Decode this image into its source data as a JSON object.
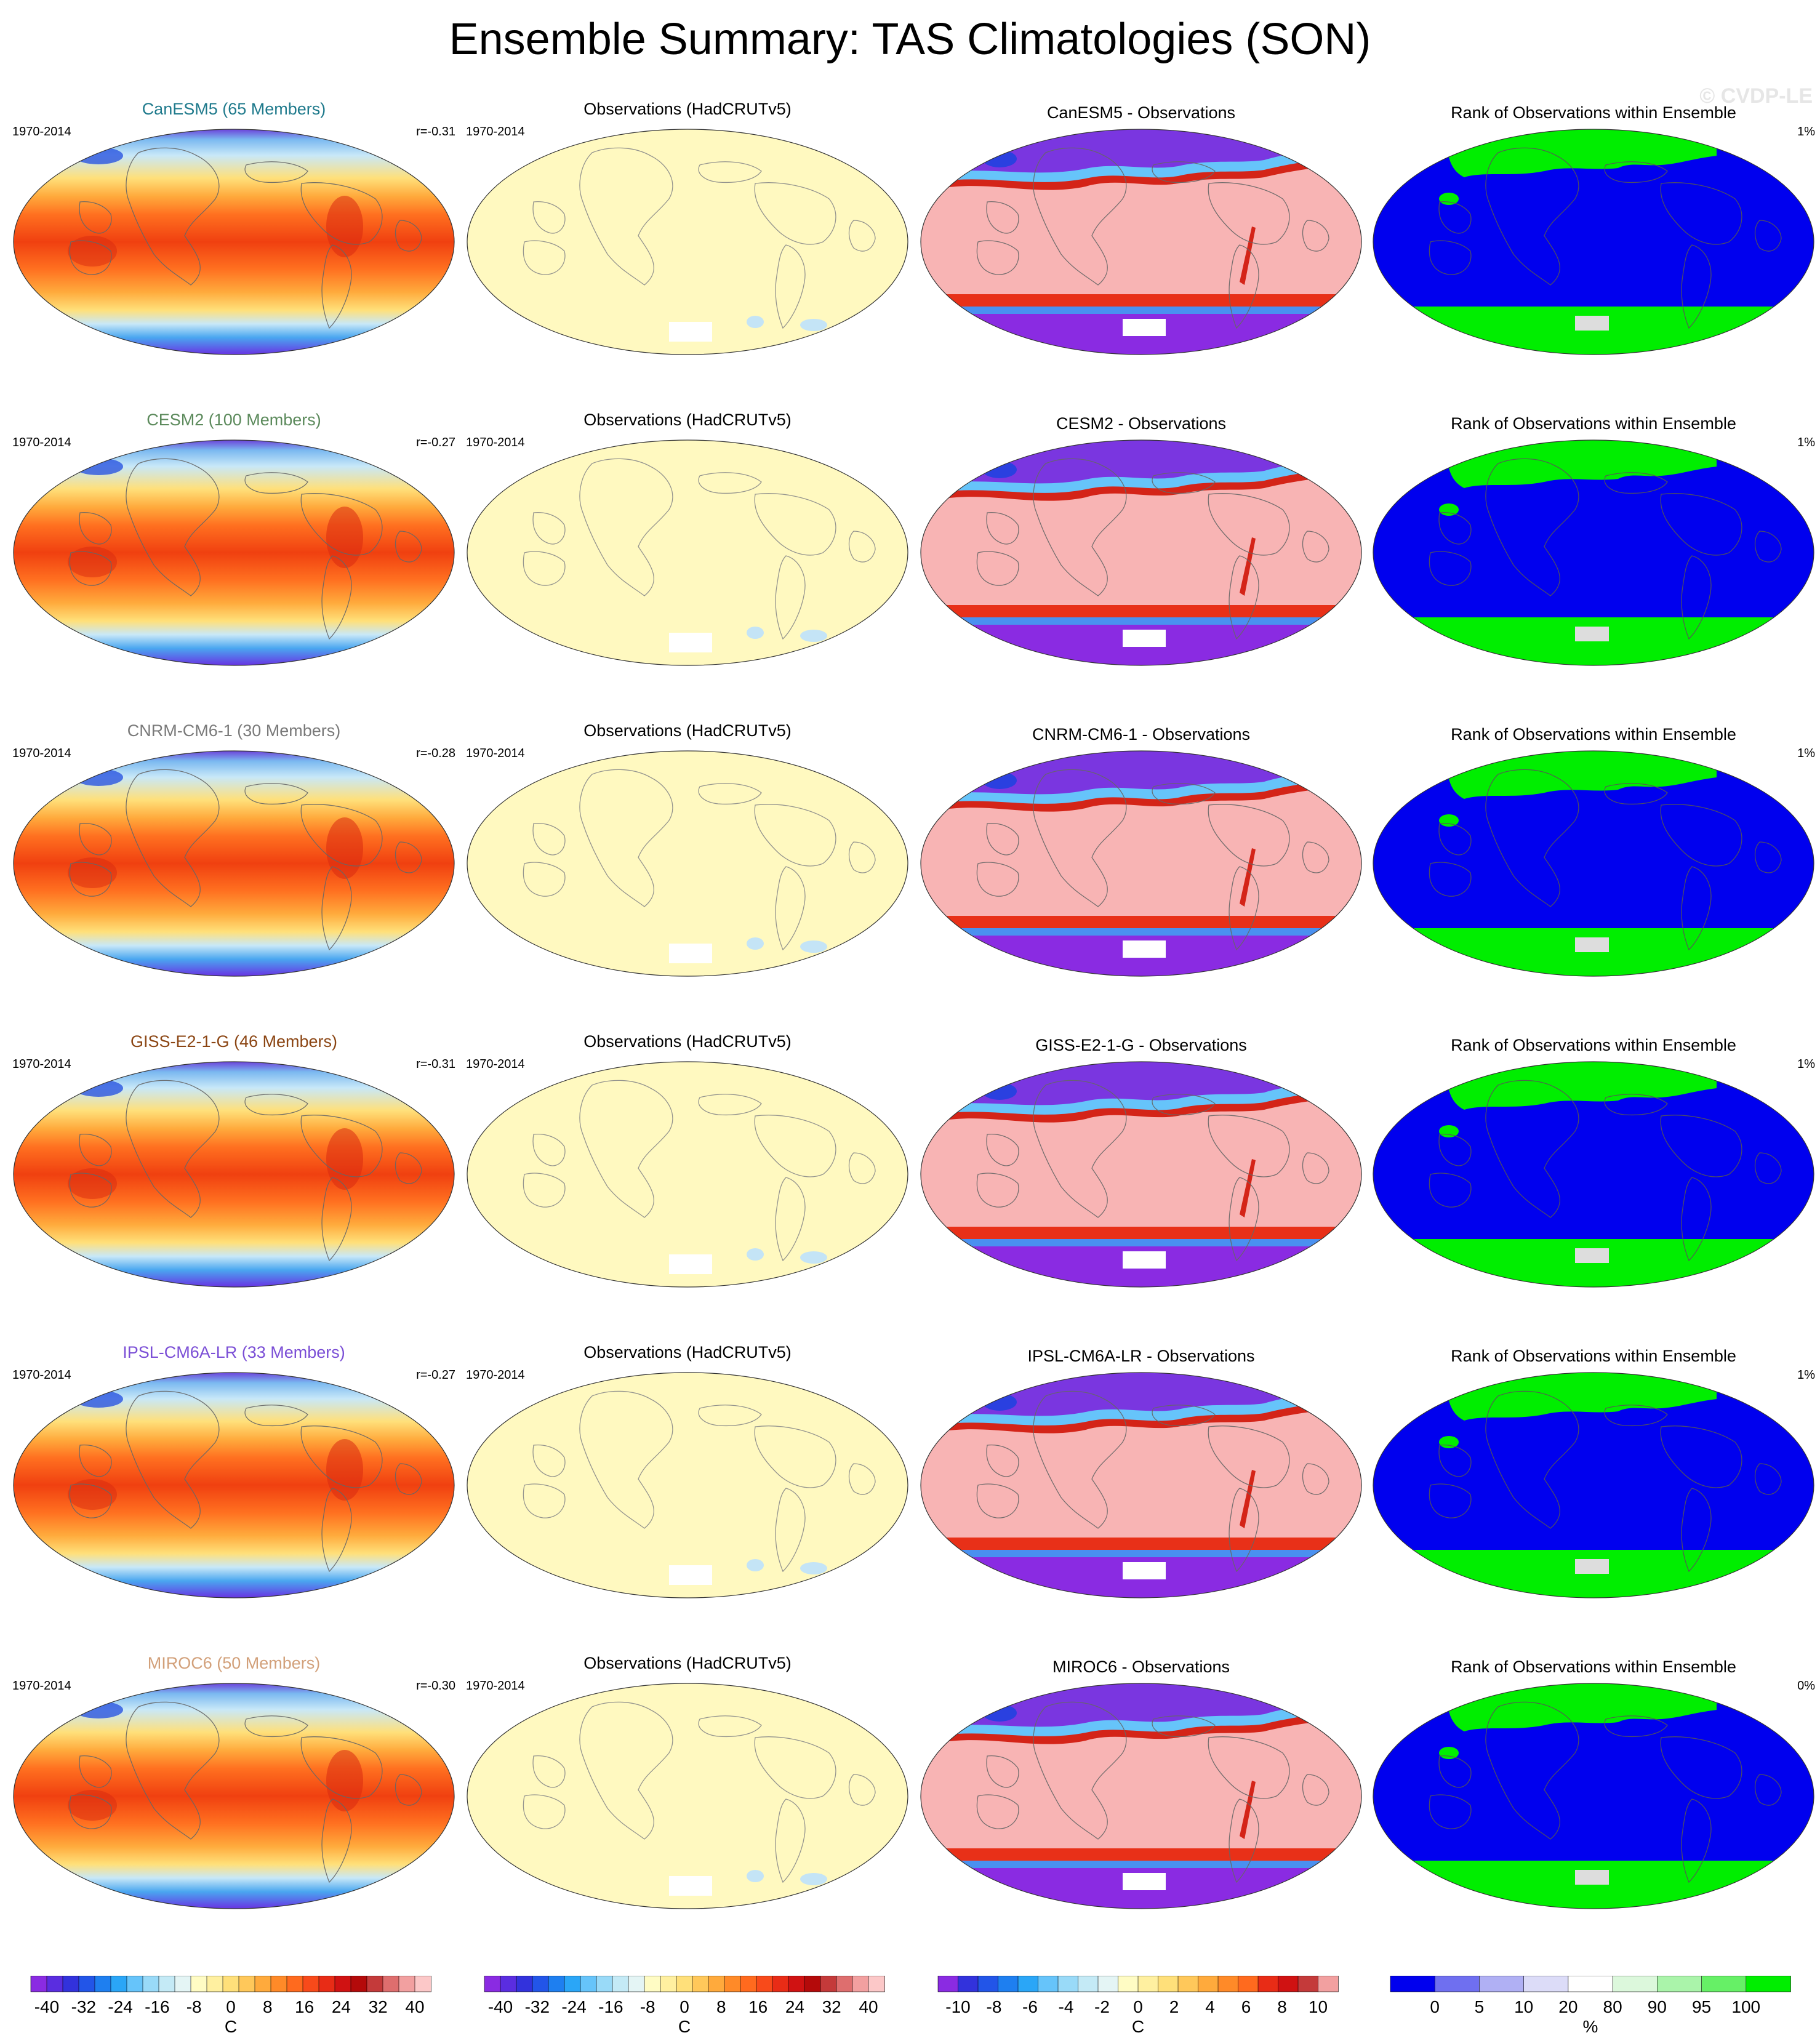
{
  "title": "Ensemble Summary: TAS Climatologies (SON)",
  "watermark": "© CVDP-LE",
  "panels": [
    {
      "model_title": "CanESM5 (65 Members)",
      "model_title_color": "#1f7a8c",
      "period": "1970-2014",
      "r": "r=-0.31",
      "obs_title": "Observations (HadCRUTv5)",
      "obs_period": "1970-2014",
      "diff_title": "CanESM5 - Observations",
      "rank_title": "Rank of Observations within Ensemble",
      "rank_pct": "1%"
    },
    {
      "model_title": "CESM2 (100 Members)",
      "model_title_color": "#5c8a5c",
      "period": "1970-2014",
      "r": "r=-0.27",
      "obs_title": "Observations (HadCRUTv5)",
      "obs_period": "1970-2014",
      "diff_title": "CESM2 - Observations",
      "rank_title": "Rank of Observations within Ensemble",
      "rank_pct": "1%"
    },
    {
      "model_title": "CNRM-CM6-1 (30 Members)",
      "model_title_color": "#7a7a7a",
      "period": "1970-2014",
      "r": "r=-0.28",
      "obs_title": "Observations (HadCRUTv5)",
      "obs_period": "1970-2014",
      "diff_title": "CNRM-CM6-1 - Observations",
      "rank_title": "Rank of Observations within Ensemble",
      "rank_pct": "1%"
    },
    {
      "model_title": "GISS-E2-1-G (46 Members)",
      "model_title_color": "#8b4513",
      "period": "1970-2014",
      "r": "r=-0.31",
      "obs_title": "Observations (HadCRUTv5)",
      "obs_period": "1970-2014",
      "diff_title": "GISS-E2-1-G - Observations",
      "rank_title": "Rank of Observations within Ensemble",
      "rank_pct": "1%"
    },
    {
      "model_title": "IPSL-CM6A-LR (33 Members)",
      "model_title_color": "#7b4fd6",
      "period": "1970-2014",
      "r": "r=-0.27",
      "obs_title": "Observations (HadCRUTv5)",
      "obs_period": "1970-2014",
      "diff_title": "IPSL-CM6A-LR - Observations",
      "rank_title": "Rank of Observations within Ensemble",
      "rank_pct": "1%"
    },
    {
      "model_title": "MIROC6 (50 Members)",
      "model_title_color": "#d2a07a",
      "period": "1970-2014",
      "r": "r=-0.30",
      "obs_title": "Observations (HadCRUTv5)",
      "obs_period": "1970-2014",
      "diff_title": "MIROC6 - Observations",
      "rank_title": "Rank of Observations within Ensemble",
      "rank_pct": "0%"
    }
  ],
  "colorbars": [
    {
      "labels": [
        "-40",
        "-32",
        "-24",
        "-16",
        "-8",
        "0",
        "8",
        "16",
        "24",
        "32",
        "40"
      ],
      "unit": "C",
      "colors": [
        "#8a2be2",
        "#5a2de0",
        "#3232dc",
        "#2255e8",
        "#1e7ff0",
        "#2aa6f7",
        "#66c4fa",
        "#99daf8",
        "#c4eaf6",
        "#e4f5f5",
        "#fffcc4",
        "#fff0a0",
        "#ffe07a",
        "#ffc85a",
        "#ffaa3c",
        "#ff8a28",
        "#ff6a1e",
        "#f84a1a",
        "#e82c16",
        "#d01212",
        "#b40a0a",
        "#c43a3a",
        "#de6e6e",
        "#f2a0a0",
        "#fcc8c8"
      ]
    },
    {
      "labels": [
        "-40",
        "-32",
        "-24",
        "-16",
        "-8",
        "0",
        "8",
        "16",
        "24",
        "32",
        "40"
      ],
      "unit": "C",
      "colors": [
        "#8a2be2",
        "#5a2de0",
        "#3232dc",
        "#2255e8",
        "#1e7ff0",
        "#2aa6f7",
        "#66c4fa",
        "#99daf8",
        "#c4eaf6",
        "#e4f5f5",
        "#fffcc4",
        "#fff0a0",
        "#ffe07a",
        "#ffc85a",
        "#ffaa3c",
        "#ff8a28",
        "#ff6a1e",
        "#f84a1a",
        "#e82c16",
        "#d01212",
        "#b40a0a",
        "#c43a3a",
        "#de6e6e",
        "#f2a0a0",
        "#fcc8c8"
      ]
    },
    {
      "labels": [
        "-10",
        "-8",
        "-6",
        "-4",
        "-2",
        "0",
        "2",
        "4",
        "6",
        "8",
        "10"
      ],
      "unit": "C",
      "colors": [
        "#8a2be2",
        "#3232dc",
        "#2255e8",
        "#1e7ff0",
        "#2aa6f7",
        "#66c4fa",
        "#99daf8",
        "#c4eaf6",
        "#e4f5f5",
        "#fffcc4",
        "#fff0a0",
        "#ffe07a",
        "#ffc85a",
        "#ffaa3c",
        "#ff8a28",
        "#ff6a1e",
        "#e82c16",
        "#d01212",
        "#c43a3a",
        "#f2a0a0"
      ]
    },
    {
      "labels": [
        "0",
        "5",
        "10",
        "20",
        "80",
        "90",
        "95",
        "100"
      ],
      "unit": "%",
      "colors": [
        "#0000ee",
        "#6f6ff0",
        "#b0b0f4",
        "#dcdcf8",
        "#ffffff",
        "#dcf8dc",
        "#aaf4aa",
        "#66f066",
        "#00ee00"
      ]
    }
  ]
}
